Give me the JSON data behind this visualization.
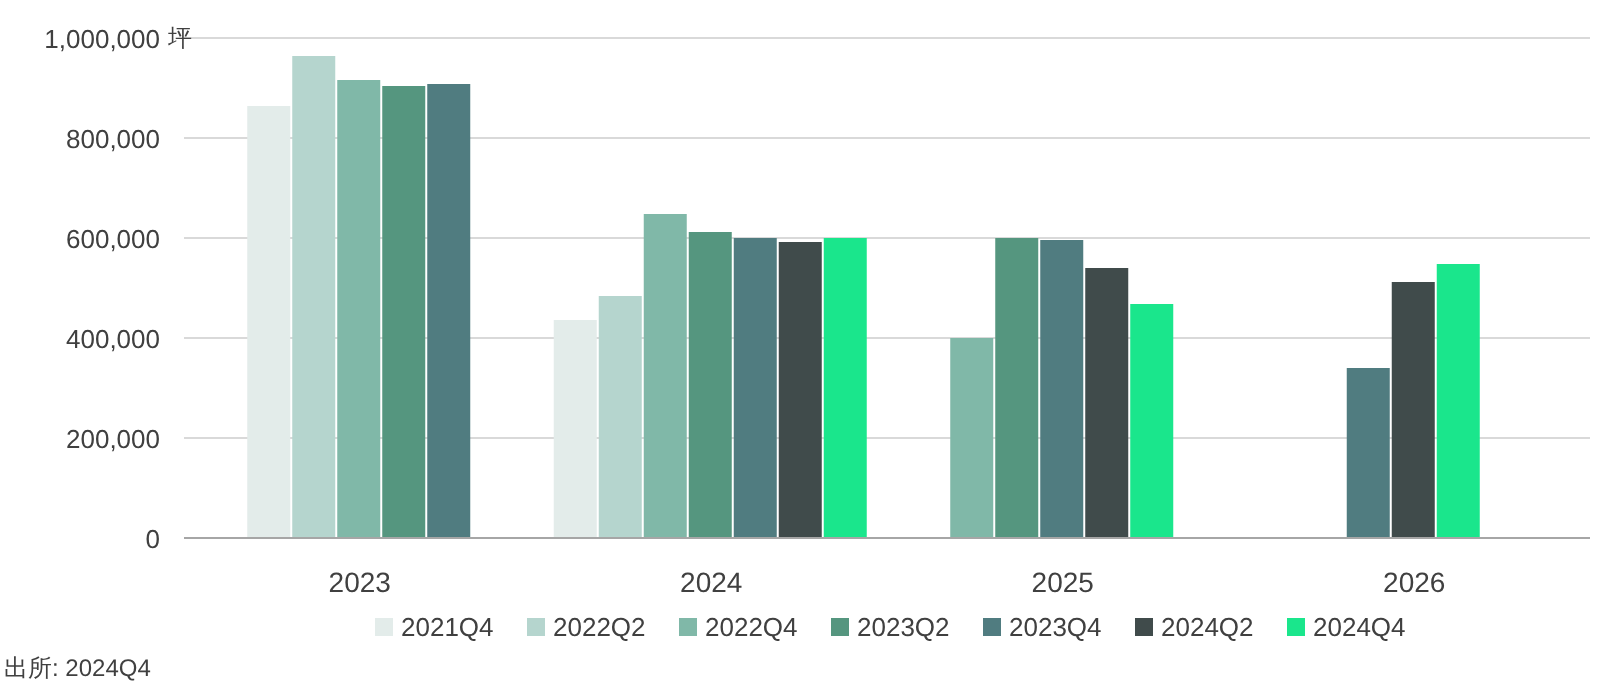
{
  "chart_data": {
    "type": "bar",
    "ylabel": "坪",
    "categories": [
      "2023",
      "2024",
      "2025",
      "2026"
    ],
    "series": [
      {
        "name": "2021Q4",
        "color": "#e3ecea",
        "values": [
          864000,
          436000,
          null,
          null
        ]
      },
      {
        "name": "2022Q2",
        "color": "#b5d5ce",
        "values": [
          964000,
          484000,
          null,
          null
        ]
      },
      {
        "name": "2022Q4",
        "color": "#80b8a8",
        "values": [
          916000,
          648000,
          400000,
          null
        ]
      },
      {
        "name": "2023Q2",
        "color": "#55967f",
        "values": [
          904000,
          612000,
          600000,
          null
        ]
      },
      {
        "name": "2023Q4",
        "color": "#507c80",
        "values": [
          908000,
          600000,
          596000,
          340000
        ]
      },
      {
        "name": "2024Q2",
        "color": "#404b4b",
        "values": [
          null,
          592000,
          540000,
          512000
        ]
      },
      {
        "name": "2024Q4",
        "color": "#1ae68c",
        "values": [
          null,
          600000,
          468000,
          548000
        ]
      }
    ],
    "ylim": [
      0,
      1000000
    ],
    "yticks": [
      {
        "value": 0,
        "label": "0"
      },
      {
        "value": 200000,
        "label": "200,000"
      },
      {
        "value": 400000,
        "label": "400,000"
      },
      {
        "value": 600000,
        "label": "600,000"
      },
      {
        "value": 800000,
        "label": "800,000"
      },
      {
        "value": 1000000,
        "label": "1,000,000"
      }
    ],
    "grid": "y",
    "legend": "bottom",
    "annotations": [
      "出所: 2024Q4"
    ]
  }
}
